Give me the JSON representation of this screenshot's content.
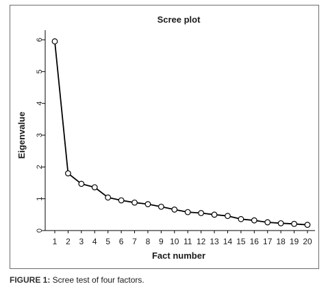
{
  "chart_data": {
    "type": "line",
    "title": "Scree plot",
    "xlabel": "Fact number",
    "ylabel": "Eigenvalue",
    "x": [
      1,
      2,
      3,
      4,
      5,
      6,
      7,
      8,
      9,
      10,
      11,
      12,
      13,
      14,
      15,
      16,
      17,
      18,
      19,
      20
    ],
    "y": [
      5.95,
      1.8,
      1.47,
      1.36,
      1.04,
      0.95,
      0.88,
      0.83,
      0.75,
      0.66,
      0.58,
      0.55,
      0.5,
      0.46,
      0.36,
      0.32,
      0.26,
      0.23,
      0.21,
      0.18
    ],
    "xticks": [
      "1",
      "2",
      "3",
      "4",
      "5",
      "6",
      "7",
      "8",
      "9",
      "10",
      "11",
      "12",
      "13",
      "14",
      "15",
      "16",
      "17",
      "18",
      "19",
      "20"
    ],
    "yticks": [
      "0",
      "1",
      "2",
      "3",
      "4",
      "5",
      "6"
    ],
    "ylim": [
      0,
      6.25
    ],
    "xlim": [
      1,
      20
    ],
    "grid": false,
    "marker": "open-circle",
    "line_color": "#000000"
  },
  "caption": {
    "label": "FIGURE 1:",
    "text": " Scree test of four factors."
  }
}
